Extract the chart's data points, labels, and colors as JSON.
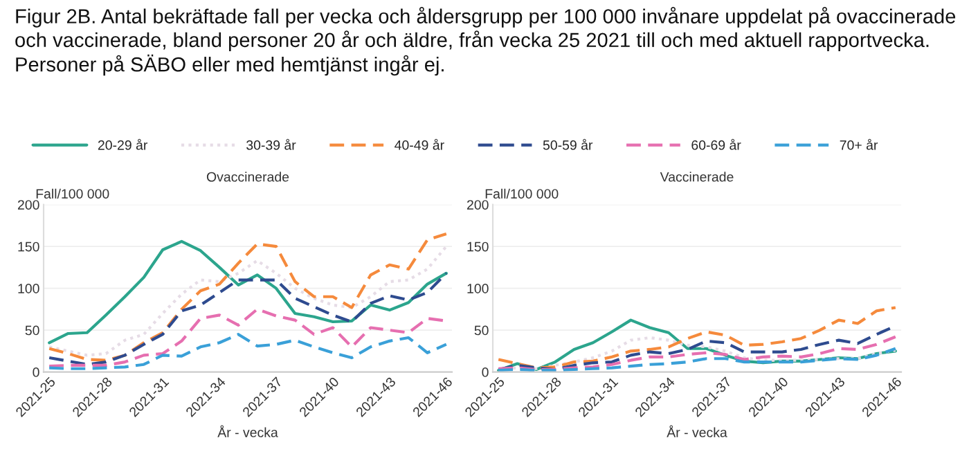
{
  "chart_data": [
    {
      "type": "line",
      "title": "Ovaccinerade",
      "subtitle": "Figur 2B. Antal bekräftade fall per vecka och åldersgrupp per 100 000 invånare uppdelat på ovaccinerade och vaccinerade, bland personer 20 år och äldre, från vecka 25 2021 till och med aktuell rapportvecka. Personer på SÄBO eller med hemtjänst ingår ej.",
      "ylabel": "Fall/100 000",
      "xlabel": "År - vecka",
      "categories": [
        "2021-25",
        null,
        null,
        "2021-28",
        null,
        null,
        "2021-31",
        null,
        null,
        "2021-34",
        null,
        null,
        "2021-37",
        null,
        null,
        "2021-40",
        null,
        null,
        "2021-43",
        null,
        null,
        "2021-46"
      ],
      "ylim": [
        0,
        200
      ],
      "yticks": [
        0,
        50,
        100,
        150,
        200
      ],
      "grid": "y",
      "legend": "top",
      "marker": "none",
      "series": [
        {
          "name": "20-29 år",
          "color": "#2ca58d",
          "line_style": "solid",
          "values": [
            35,
            46,
            47,
            68,
            90,
            113,
            146,
            156,
            145,
            125,
            104,
            116,
            100,
            70,
            66,
            60,
            61,
            80,
            74,
            83,
            105,
            118
          ]
        },
        {
          "name": "30-39 år",
          "color": "#e6dce6",
          "line_style": "dotted",
          "values": [
            30,
            25,
            20,
            22,
            38,
            45,
            70,
            93,
            110,
            108,
            118,
            133,
            118,
            100,
            88,
            80,
            77,
            90,
            108,
            110,
            123,
            150
          ]
        },
        {
          "name": "40-49 år",
          "color": "#f58a3c",
          "line_style": "dashed",
          "values": [
            28,
            22,
            15,
            14,
            20,
            35,
            47,
            75,
            97,
            105,
            130,
            153,
            150,
            108,
            90,
            90,
            77,
            116,
            128,
            123,
            158,
            165
          ]
        },
        {
          "name": "50-59 år",
          "color": "#2e4b8f",
          "line_style": "dashed",
          "values": [
            17,
            13,
            9,
            12,
            20,
            33,
            45,
            73,
            80,
            95,
            110,
            110,
            110,
            88,
            78,
            68,
            60,
            82,
            91,
            86,
            95,
            118
          ]
        },
        {
          "name": "60-69 år",
          "color": "#e66fb0",
          "line_style": "dashed",
          "values": [
            7,
            8,
            8,
            8,
            12,
            20,
            22,
            37,
            64,
            68,
            56,
            75,
            67,
            62,
            45,
            53,
            30,
            53,
            50,
            47,
            64,
            61
          ]
        },
        {
          "name": "70+ år",
          "color": "#3aa0d8",
          "line_style": "dashed",
          "values": [
            5,
            4,
            4,
            5,
            6,
            9,
            20,
            19,
            30,
            35,
            45,
            31,
            33,
            38,
            30,
            23,
            17,
            30,
            37,
            41,
            23,
            33
          ]
        }
      ]
    },
    {
      "type": "line",
      "title": "Vaccinerade",
      "ylabel": "Fall/100 000",
      "xlabel": "År - vecka",
      "categories": [
        "2021-25",
        null,
        null,
        "2021-28",
        null,
        null,
        "2021-31",
        null,
        null,
        "2021-34",
        null,
        null,
        "2021-37",
        null,
        null,
        "2021-40",
        null,
        null,
        "2021-43",
        null,
        null,
        "2021-46"
      ],
      "ylim": [
        0,
        200
      ],
      "yticks": [
        0,
        50,
        100,
        150,
        200
      ],
      "grid": "y",
      "marker": "none",
      "series": [
        {
          "color": "#2ca58d",
          "line_style": "solid",
          "values": [
            2,
            10,
            3,
            12,
            27,
            35,
            48,
            62,
            53,
            47,
            28,
            28,
            20,
            13,
            11,
            13,
            13,
            15,
            17,
            16,
            22,
            25
          ]
        },
        {
          "color": "#e6dce6",
          "line_style": "dotted",
          "values": [
            3,
            5,
            4,
            8,
            12,
            17,
            25,
            38,
            41,
            38,
            32,
            30,
            25,
            17,
            14,
            14,
            14,
            15,
            16,
            16,
            22,
            26
          ]
        },
        {
          "color": "#f58a3c",
          "line_style": "dashed",
          "values": [
            15,
            10,
            5,
            6,
            12,
            13,
            18,
            25,
            27,
            30,
            40,
            48,
            44,
            32,
            33,
            36,
            40,
            50,
            62,
            58,
            73,
            77
          ]
        },
        {
          "color": "#2e4b8f",
          "line_style": "dashed",
          "values": [
            3,
            8,
            5,
            3,
            8,
            11,
            12,
            20,
            24,
            22,
            27,
            37,
            35,
            24,
            24,
            24,
            27,
            33,
            38,
            34,
            45,
            55
          ]
        },
        {
          "color": "#e66fb0",
          "line_style": "dashed",
          "values": [
            4,
            5,
            3,
            3,
            5,
            6,
            9,
            14,
            18,
            18,
            21,
            23,
            21,
            15,
            18,
            19,
            18,
            22,
            28,
            27,
            33,
            42
          ]
        },
        {
          "color": "#3aa0d8",
          "line_style": "dashed",
          "values": [
            2,
            3,
            2,
            2,
            3,
            4,
            5,
            7,
            9,
            10,
            12,
            16,
            16,
            12,
            12,
            12,
            12,
            14,
            16,
            15,
            20,
            28
          ]
        }
      ]
    }
  ]
}
